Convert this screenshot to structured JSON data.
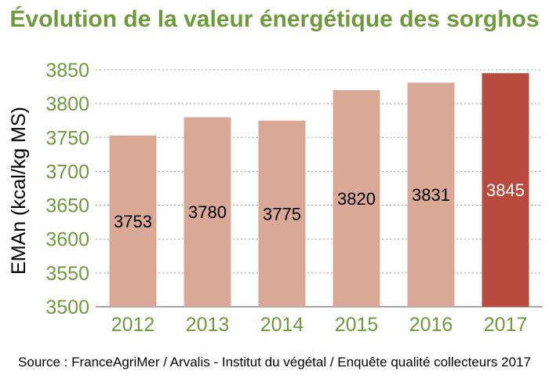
{
  "title": "Évolution de la valeur énergétique des sorghos",
  "source": "Source : FranceAgriMer / Arvalis - Institut du végétal / Enquête qualité collecteurs 2017",
  "colors": {
    "title": "#6f9a3c",
    "axis_text": "#6f9a3c",
    "bar": "#d9a896",
    "bar_highlight": "#b84a3e",
    "label_dark": "#000000",
    "label_light": "#ffffff",
    "grid": "#9a9a9a"
  },
  "chart_data": {
    "type": "bar",
    "categories": [
      "2012",
      "2013",
      "2014",
      "2015",
      "2016",
      "2017"
    ],
    "values": [
      3753,
      3780,
      3775,
      3820,
      3831,
      3845
    ],
    "highlight_index": 5,
    "ylabel": "EMAn (kcal/kg MS)",
    "ylim": [
      3500,
      3850
    ],
    "yticks": [
      3500,
      3550,
      3600,
      3650,
      3700,
      3750,
      3800,
      3850
    ],
    "grid": true,
    "data_labels": [
      "3753",
      "3780",
      "3775",
      "3820",
      "3831",
      "3845"
    ]
  }
}
